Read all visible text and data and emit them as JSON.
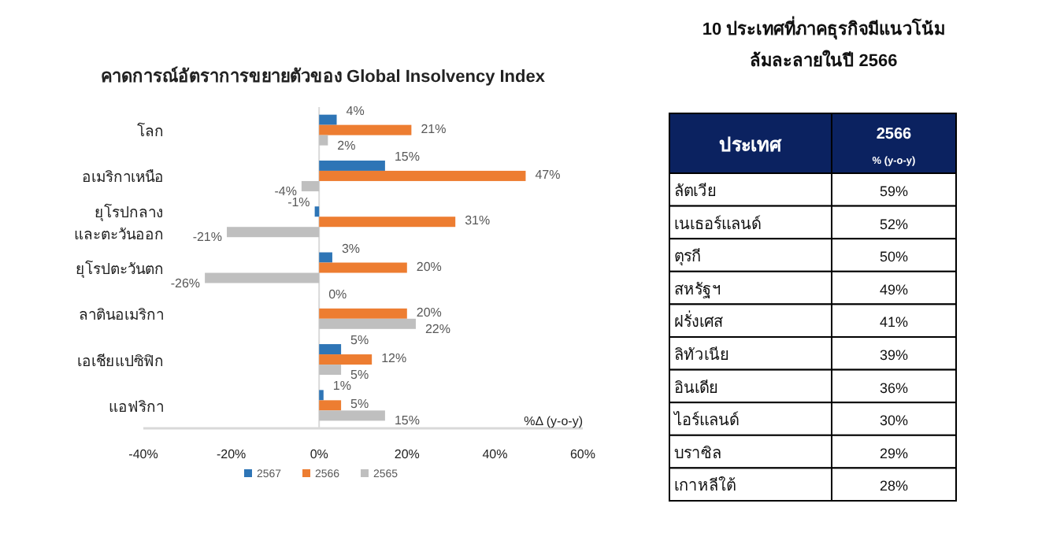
{
  "chart_data": [
    {
      "type": "bar",
      "orientation": "horizontal",
      "title": "คาดการณ์อัตราการขยายตัวของ Global Insolvency Index",
      "xlabel": "%Δ (y-o-y)",
      "categories": [
        "โลก",
        "อเมริกาเหนือ",
        "ยุโรปกลาง\nและตะวันออก",
        "ยุโรปตะวันตก",
        "ลาตินอเมริกา",
        "เอเชียแปซิฟิก",
        "แอฟริกา"
      ],
      "series": [
        {
          "name": "2567",
          "color": "#2e75b6",
          "values": [
            4,
            15,
            -1,
            3,
            0,
            5,
            1
          ],
          "value_labels": [
            "4%",
            "15%",
            "-1%",
            "3%",
            "0%",
            "5%",
            "1%"
          ]
        },
        {
          "name": "2566",
          "color": "#ed7d31",
          "values": [
            21,
            47,
            31,
            20,
            20,
            12,
            5
          ],
          "value_labels": [
            "21%",
            "47%",
            "31%",
            "20%",
            "20%",
            "12%",
            "5%"
          ]
        },
        {
          "name": "2565",
          "color": "#bfbfbf",
          "values": [
            2,
            -4,
            -21,
            -26,
            22,
            5,
            15
          ],
          "value_labels": [
            "2%",
            "-4%",
            "-21%",
            "-26%",
            "22%",
            "5%",
            "15%"
          ]
        }
      ],
      "xlim": [
        -40,
        60
      ],
      "xticks": [
        {
          "value": -40,
          "label": "-40%"
        },
        {
          "value": -20,
          "label": "-20%"
        },
        {
          "value": 0,
          "label": "0%"
        },
        {
          "value": 20,
          "label": "20%"
        },
        {
          "value": 40,
          "label": "40%"
        },
        {
          "value": 60,
          "label": "60%"
        }
      ],
      "legend": "bottom"
    },
    {
      "type": "other",
      "title": "10 ประเทศที่ภาคธุรกิจมีแนวโน้ม\nล้มละลายในปี 2566",
      "annotations": [
        "ประเทศ",
        "2566",
        "% (y-o-y)"
      ],
      "categories": [
        "ลัตเวีย",
        "เนเธอร์แลนด์",
        "ตุรกี",
        "สหรัฐฯ",
        "ฝรั่งเศส",
        "ลิทัวเนีย",
        "อินเดีย",
        "ไอร์แลนด์",
        "บราซิล",
        "เกาหลีใต้"
      ],
      "values": [
        59,
        52,
        50,
        49,
        41,
        39,
        36,
        30,
        29,
        28
      ],
      "value_labels": [
        "59%",
        "52%",
        "50%",
        "49%",
        "41%",
        "39%",
        "36%",
        "30%",
        "29%",
        "28%"
      ]
    }
  ]
}
